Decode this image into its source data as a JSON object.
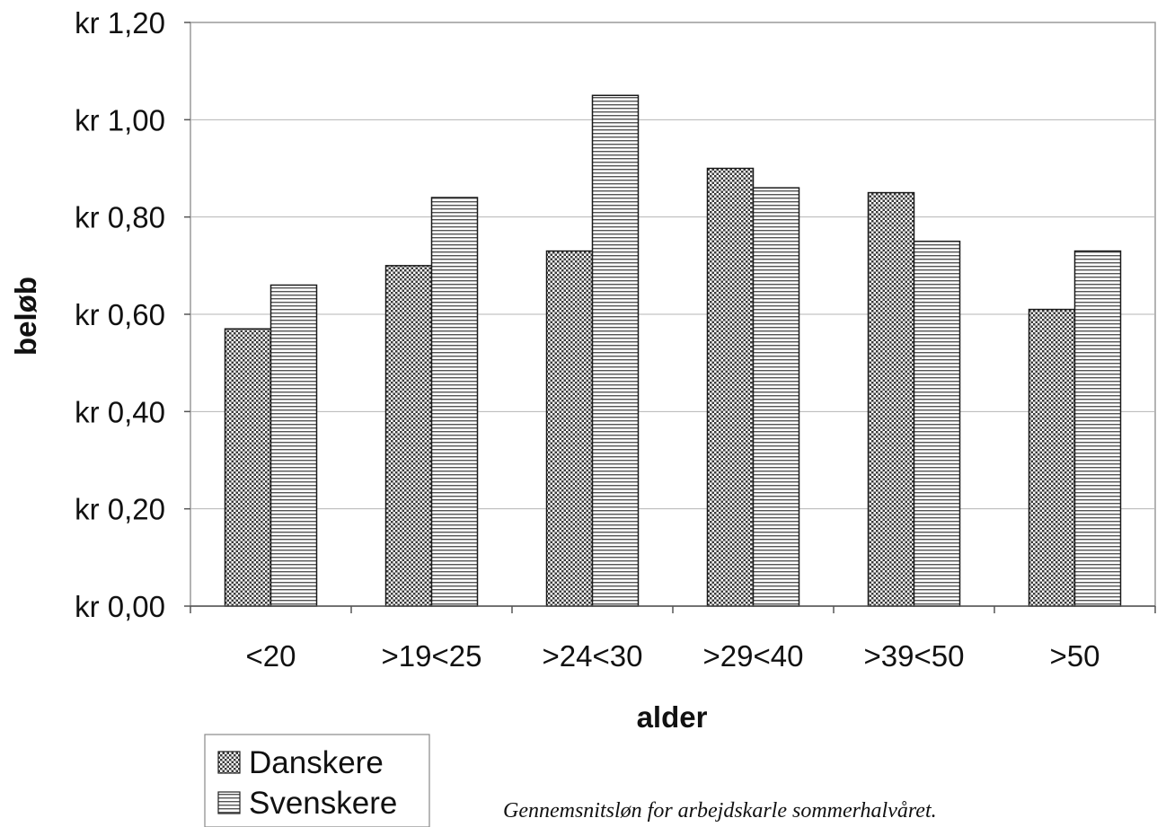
{
  "chart_data": {
    "type": "bar",
    "xlabel": "alder",
    "ylabel": "beløb",
    "categories": [
      "<20",
      ">19<25",
      ">24<30",
      ">29<40",
      ">39<50",
      ">50"
    ],
    "series": [
      {
        "name": "Danskere",
        "values": [
          0.57,
          0.7,
          0.73,
          0.9,
          0.85,
          0.61
        ]
      },
      {
        "name": "Svenskere",
        "values": [
          0.66,
          0.84,
          1.05,
          0.86,
          0.75,
          0.73
        ]
      }
    ],
    "ylim": [
      0,
      1.2
    ],
    "yticks": [
      "kr 0,00",
      "kr 0,20",
      "kr 0,40",
      "kr 0,60",
      "kr 0,80",
      "kr 1,00",
      "kr 1,20"
    ],
    "grid": true,
    "legend": "bottom-left",
    "caption": "Gennemsnitsløn for arbejdskarle sommerhalvåret."
  }
}
